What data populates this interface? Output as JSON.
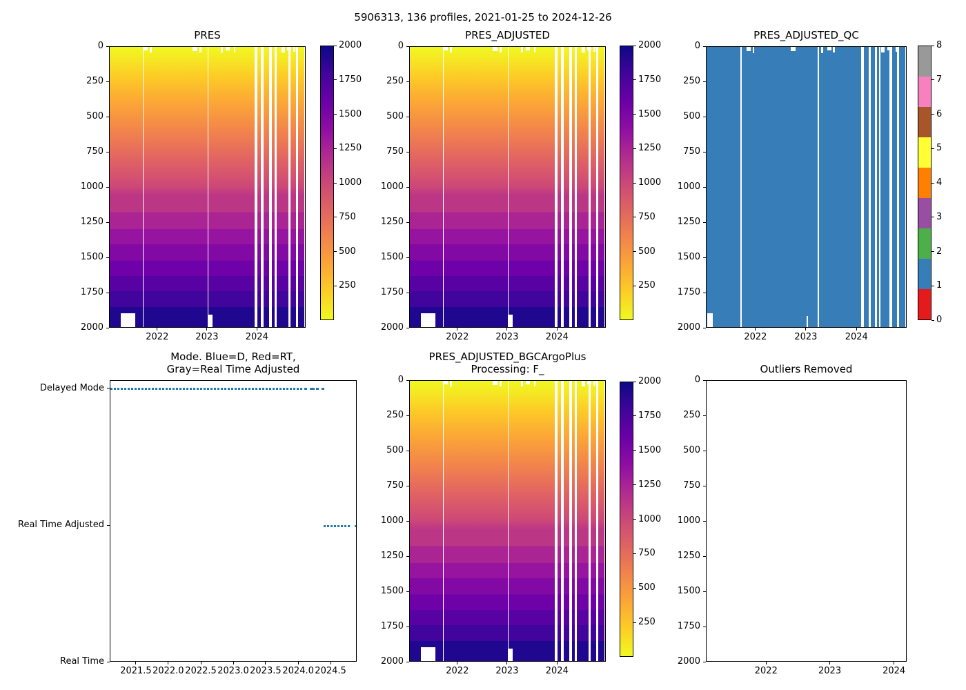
{
  "figure_title": "5906313, 136 profiles, 2021-01-25 to 2024-12-26",
  "colors": {
    "background": "#ffffff",
    "axis": "#000000",
    "text": "#000000",
    "line_blue": "#1f77b4",
    "qc_fill": "#377eb8",
    "plasma_r_stops": [
      "#0d0887",
      "#41049d",
      "#6a00a8",
      "#8f0da4",
      "#b12a90",
      "#cc4778",
      "#e16462",
      "#f2844b",
      "#fca636",
      "#fcce25",
      "#f0f921"
    ],
    "qc_palette_0_to_8": [
      "#e41a1c",
      "#377eb8",
      "#4daf4a",
      "#984ea3",
      "#ff7f00",
      "#ffff33",
      "#a65628",
      "#f781bf",
      "#999999"
    ]
  },
  "depth_ticks": [
    {
      "label": "0",
      "f": 0
    },
    {
      "label": "250",
      "f": 0.125
    },
    {
      "label": "500",
      "f": 0.25
    },
    {
      "label": "750",
      "f": 0.375
    },
    {
      "label": "1000",
      "f": 0.5
    },
    {
      "label": "1250",
      "f": 0.625
    },
    {
      "label": "1500",
      "f": 0.75
    },
    {
      "label": "1750",
      "f": 0.875
    },
    {
      "label": "2000",
      "f": 1
    }
  ],
  "pressure_colorbar_ticks": [
    {
      "label": "2000",
      "f": 0
    },
    {
      "label": "1750",
      "f": 0.125
    },
    {
      "label": "1500",
      "f": 0.25
    },
    {
      "label": "1250",
      "f": 0.375
    },
    {
      "label": "1000",
      "f": 0.5
    },
    {
      "label": "750",
      "f": 0.625
    },
    {
      "label": "500",
      "f": 0.75
    },
    {
      "label": "250",
      "f": 0.875
    }
  ],
  "qc_colorbar_ticks": [
    {
      "label": "8",
      "f": 0
    },
    {
      "label": "7",
      "f": 0.125
    },
    {
      "label": "6",
      "f": 0.25
    },
    {
      "label": "5",
      "f": 0.375
    },
    {
      "label": "4",
      "f": 0.5
    },
    {
      "label": "3",
      "f": 0.625
    },
    {
      "label": "2",
      "f": 0.75
    },
    {
      "label": "1",
      "f": 0.875
    },
    {
      "label": "0",
      "f": 1
    }
  ],
  "heatmap_band_boundaries": [
    0.53,
    0.59,
    0.65,
    0.705,
    0.762,
    0.818,
    0.872,
    0.928,
    1
  ],
  "chart_data": [
    {
      "id": "pres",
      "type": "heatmap",
      "title_lines": [
        "PRES"
      ],
      "value_range": [
        0,
        2000
      ],
      "y_range": [
        0,
        2000
      ],
      "y_ticks": "depth_ticks",
      "x_ticks": [
        {
          "label": "2022",
          "f": 0.245
        },
        {
          "label": "2023",
          "f": 0.498
        },
        {
          "label": "2024",
          "f": 0.752
        }
      ],
      "colormap": "plasma_r",
      "colorbar_ticks": "pressure_colorbar_ticks",
      "gaps": [
        {
          "f": 0.168,
          "w": 0.004
        },
        {
          "f": 0.498,
          "w": 0.005
        },
        {
          "f": 0.738,
          "w": 0.012
        },
        {
          "f": 0.77,
          "w": 0.012
        },
        {
          "f": 0.812,
          "w": 0.012
        },
        {
          "f": 0.84,
          "w": 0.01
        },
        {
          "f": 0.908,
          "w": 0.012
        },
        {
          "f": 0.948,
          "w": 0.01
        },
        {
          "f": 0.99,
          "w": 0.008
        }
      ],
      "top_notches": [
        {
          "f": 0.17,
          "w": 0.022,
          "d": 0.012
        },
        {
          "f": 0.205,
          "w": 0.008,
          "d": 0.02
        },
        {
          "f": 0.42,
          "w": 0.025,
          "d": 0.014
        },
        {
          "f": 0.455,
          "w": 0.012,
          "d": 0.02
        },
        {
          "f": 0.565,
          "w": 0.01,
          "d": 0.02
        },
        {
          "f": 0.59,
          "w": 0.022,
          "d": 0.012
        },
        {
          "f": 0.632,
          "w": 0.008,
          "d": 0.02
        },
        {
          "f": 0.875,
          "w": 0.016,
          "d": 0.02
        },
        {
          "f": 0.9,
          "w": 0.022,
          "d": 0.012
        },
        {
          "f": 0.935,
          "w": 0.01,
          "d": 0.018
        }
      ],
      "bottom_notches": [
        {
          "f": 0.055,
          "w": 0.075,
          "d": 0.945
        },
        {
          "f": 0.503,
          "w": 0.02,
          "d": 0.952
        }
      ]
    },
    {
      "id": "pres_adjusted",
      "type": "heatmap",
      "title_lines": [
        "PRES_ADJUSTED"
      ],
      "value_range": [
        0,
        2000
      ],
      "y_range": [
        0,
        2000
      ],
      "y_ticks": "depth_ticks",
      "x_ticks": [
        {
          "label": "2022",
          "f": 0.245
        },
        {
          "label": "2023",
          "f": 0.498
        },
        {
          "label": "2024",
          "f": 0.752
        }
      ],
      "colormap": "plasma_r",
      "colorbar_ticks": "pressure_colorbar_ticks",
      "gaps": [
        {
          "f": 0.168,
          "w": 0.004
        },
        {
          "f": 0.498,
          "w": 0.005
        },
        {
          "f": 0.738,
          "w": 0.012
        },
        {
          "f": 0.77,
          "w": 0.012
        },
        {
          "f": 0.812,
          "w": 0.012
        },
        {
          "f": 0.84,
          "w": 0.01
        },
        {
          "f": 0.908,
          "w": 0.012
        },
        {
          "f": 0.948,
          "w": 0.01
        },
        {
          "f": 0.99,
          "w": 0.008
        }
      ],
      "top_notches": [
        {
          "f": 0.17,
          "w": 0.022,
          "d": 0.012
        },
        {
          "f": 0.205,
          "w": 0.008,
          "d": 0.02
        },
        {
          "f": 0.42,
          "w": 0.025,
          "d": 0.014
        },
        {
          "f": 0.455,
          "w": 0.012,
          "d": 0.02
        },
        {
          "f": 0.565,
          "w": 0.01,
          "d": 0.02
        },
        {
          "f": 0.59,
          "w": 0.022,
          "d": 0.012
        },
        {
          "f": 0.632,
          "w": 0.008,
          "d": 0.02
        },
        {
          "f": 0.875,
          "w": 0.016,
          "d": 0.02
        },
        {
          "f": 0.9,
          "w": 0.022,
          "d": 0.012
        },
        {
          "f": 0.935,
          "w": 0.01,
          "d": 0.018
        }
      ],
      "bottom_notches": [
        {
          "f": 0.055,
          "w": 0.075,
          "d": 0.945
        },
        {
          "f": 0.503,
          "w": 0.02,
          "d": 0.952
        }
      ]
    },
    {
      "id": "qc",
      "type": "heatmap_flat",
      "title_lines": [
        "PRES_ADJUSTED_QC"
      ],
      "value_range": [
        0,
        8
      ],
      "y_range": [
        0,
        2000
      ],
      "flat_value": 1,
      "y_ticks": "depth_ticks",
      "x_ticks": [
        {
          "label": "2022",
          "f": 0.247
        },
        {
          "label": "2023",
          "f": 0.498
        },
        {
          "label": "2024",
          "f": 0.75
        }
      ],
      "colormap": "qc_discrete",
      "colorbar_ticks": "qc_colorbar_ticks",
      "gaps": [
        {
          "f": 0.168,
          "w": 0.007
        },
        {
          "f": 0.553,
          "w": 0.006
        },
        {
          "f": 0.771,
          "w": 0.012
        },
        {
          "f": 0.806,
          "w": 0.012
        },
        {
          "f": 0.839,
          "w": 0.01
        },
        {
          "f": 0.858,
          "w": 0.008
        },
        {
          "f": 0.912,
          "w": 0.012
        },
        {
          "f": 0.95,
          "w": 0.008
        },
        {
          "f": 0.991,
          "w": 0.007
        }
      ],
      "top_notches": [
        {
          "f": 0.2,
          "w": 0.02,
          "d": 0.014
        },
        {
          "f": 0.23,
          "w": 0.008,
          "d": 0.022
        },
        {
          "f": 0.42,
          "w": 0.022,
          "d": 0.014
        },
        {
          "f": 0.57,
          "w": 0.01,
          "d": 0.022
        },
        {
          "f": 0.6,
          "w": 0.022,
          "d": 0.013
        },
        {
          "f": 0.63,
          "w": 0.008,
          "d": 0.02
        },
        {
          "f": 0.87,
          "w": 0.016,
          "d": 0.02
        },
        {
          "f": 0.9,
          "w": 0.02,
          "d": 0.012
        },
        {
          "f": 0.94,
          "w": 0.008,
          "d": 0.018
        }
      ],
      "bottom_notches": [
        {
          "f": 0.005,
          "w": 0.026,
          "d": 0.945
        },
        {
          "f": 0.498,
          "w": 0.008,
          "d": 0.955
        },
        {
          "f": 0.988,
          "w": 0.012,
          "d": 0.93
        }
      ]
    },
    {
      "id": "mode",
      "type": "scatter_lines",
      "title_lines": [
        "Mode. Blue=D, Red=RT,",
        "Gray=Real Time Adjusted"
      ],
      "y_ticks": [
        {
          "label": "Delayed Mode",
          "f": 0.029
        },
        {
          "label": "Real Time Adjusted",
          "f": 0.515
        },
        {
          "label": "Real Time",
          "f": 1
        }
      ],
      "x_ticks": [
        {
          "label": "2021.5",
          "f": 0.106
        },
        {
          "label": "2022.0",
          "f": 0.237
        },
        {
          "label": "2022.5",
          "f": 0.369
        },
        {
          "label": "2023.0",
          "f": 0.5
        },
        {
          "label": "2023.5",
          "f": 0.631
        },
        {
          "label": "2024.0",
          "f": 0.763
        },
        {
          "label": "2024.5",
          "f": 0.894
        }
      ],
      "series": [
        {
          "name": "Delayed Mode",
          "y_f": 0.029,
          "style": "dotted",
          "segments": [
            [
              0.0,
              0.776
            ],
            [
              0.785,
              0.795
            ],
            [
              0.808,
              0.827
            ],
            [
              0.832,
              0.845
            ],
            [
              0.855,
              0.865
            ]
          ]
        },
        {
          "name": "Real Time Adjusted",
          "y_f": 0.515,
          "style": "dotted",
          "segments": [
            [
              0.864,
              0.976
            ],
            [
              0.99,
              0.997
            ]
          ]
        }
      ]
    },
    {
      "id": "bgc",
      "type": "heatmap",
      "title_lines": [
        "PRES_ADJUSTED_BGCArgoPlus",
        "Processing: F_"
      ],
      "value_range": [
        0,
        2000
      ],
      "y_range": [
        0,
        2000
      ],
      "y_ticks": "depth_ticks",
      "x_ticks": [
        {
          "label": "2022",
          "f": 0.245
        },
        {
          "label": "2023",
          "f": 0.498
        },
        {
          "label": "2024",
          "f": 0.752
        }
      ],
      "colormap": "plasma_r",
      "colorbar_ticks": "pressure_colorbar_ticks",
      "gaps": [
        {
          "f": 0.168,
          "w": 0.004
        },
        {
          "f": 0.498,
          "w": 0.005
        },
        {
          "f": 0.738,
          "w": 0.012
        },
        {
          "f": 0.77,
          "w": 0.012
        },
        {
          "f": 0.812,
          "w": 0.012
        },
        {
          "f": 0.84,
          "w": 0.01
        },
        {
          "f": 0.908,
          "w": 0.012
        },
        {
          "f": 0.948,
          "w": 0.01
        },
        {
          "f": 0.99,
          "w": 0.008
        }
      ],
      "top_notches": [
        {
          "f": 0.17,
          "w": 0.022,
          "d": 0.012
        },
        {
          "f": 0.205,
          "w": 0.008,
          "d": 0.02
        },
        {
          "f": 0.42,
          "w": 0.025,
          "d": 0.014
        },
        {
          "f": 0.455,
          "w": 0.012,
          "d": 0.02
        },
        {
          "f": 0.565,
          "w": 0.01,
          "d": 0.02
        },
        {
          "f": 0.59,
          "w": 0.022,
          "d": 0.012
        },
        {
          "f": 0.632,
          "w": 0.008,
          "d": 0.02
        },
        {
          "f": 0.875,
          "w": 0.016,
          "d": 0.02
        },
        {
          "f": 0.9,
          "w": 0.022,
          "d": 0.012
        },
        {
          "f": 0.935,
          "w": 0.01,
          "d": 0.018
        }
      ],
      "bottom_notches": [
        {
          "f": 0.055,
          "w": 0.075,
          "d": 0.945
        },
        {
          "f": 0.503,
          "w": 0.02,
          "d": 0.952
        }
      ]
    },
    {
      "id": "outliers",
      "type": "empty",
      "title_lines": [
        "Outliers Removed"
      ],
      "y_range": [
        0,
        2000
      ],
      "y_ticks": "depth_ticks",
      "x_ticks": [
        {
          "label": "2022",
          "f": 0.3
        },
        {
          "label": "2023",
          "f": 0.617
        },
        {
          "label": "2024",
          "f": 0.937
        }
      ]
    }
  ]
}
